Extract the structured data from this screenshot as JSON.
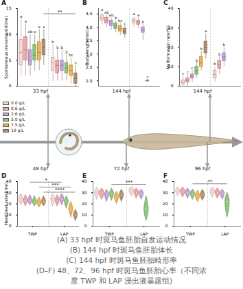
{
  "chart_data": [
    {
      "type": "box",
      "title": "A",
      "subtitle": "33 hpf",
      "y_label": "Spontaneous movement(time)",
      "categories": [
        null,
        null
      ],
      "tick_labels": "y",
      "legend": "left",
      "ylim": [
        0,
        15
      ],
      "yticks": [
        0,
        5,
        10,
        15
      ],
      "series": [
        {
          "name": "0.0 g/L",
          "color": "#f7d7d7",
          "values": [
            {
              "min": 2,
              "q1": 4,
              "median": 6.5,
              "q3": 9,
              "max": 13
            },
            {
              "min": 1,
              "q1": 3,
              "median": 4.5,
              "q3": 5.5,
              "max": 8
            }
          ],
          "letters": [
            "a",
            "b"
          ]
        },
        {
          "name": "0.6 g/L",
          "color": "#f2a7a0",
          "values": [
            {
              "min": 2,
              "q1": 5,
              "median": 7,
              "q3": 9.5,
              "max": 12
            },
            {
              "min": 1,
              "q1": 2.5,
              "median": 4,
              "q3": 5,
              "max": 7
            }
          ],
          "letters": [
            "a",
            "b"
          ]
        },
        {
          "name": "2.6 g/L",
          "color": "#c6a5dc",
          "values": [
            {
              "min": 2,
              "q1": 4,
              "median": 5,
              "q3": 7,
              "max": 10
            },
            {
              "min": 1,
              "q1": 3,
              "median": 4,
              "q3": 5,
              "max": 7
            }
          ],
          "letters": [
            "ab",
            "b"
          ]
        },
        {
          "name": "5.0 g/L",
          "color": "#8fc67e",
          "values": [
            {
              "min": 3,
              "q1": 5,
              "median": 6,
              "q3": 8,
              "max": 10
            },
            {
              "min": 1,
              "q1": 2.5,
              "median": 3.5,
              "q3": 4.5,
              "max": 6
            }
          ],
          "letters": [
            "a",
            "b"
          ]
        },
        {
          "name": "7.5 g/L",
          "color": "#f3b44e",
          "values": [
            {
              "min": 3,
              "q1": 5,
              "median": 6.5,
              "q3": 8.5,
              "max": 11
            },
            {
              "min": 0.5,
              "q1": 2,
              "median": 3,
              "q3": 4,
              "max": 5.5
            }
          ],
          "letters": [
            "a",
            "bc"
          ]
        },
        {
          "name": "10 g/L",
          "color": "#b49170",
          "values": [
            {
              "min": 4,
              "q1": 6,
              "median": 7.5,
              "q3": 9,
              "max": 11
            },
            {
              "min": 0,
              "q1": 0.5,
              "median": 1.5,
              "q3": 2.5,
              "max": 4
            }
          ],
          "letters": [
            "a",
            "c"
          ]
        }
      ],
      "brackets": [
        {
          "from": [
            0,
            5
          ],
          "to": [
            1,
            5
          ],
          "y": 14,
          "label": "**"
        }
      ]
    },
    {
      "type": "box",
      "title": "B",
      "subtitle": "144 hpf",
      "y_label": "Body length(mm)",
      "categories": [
        null,
        null
      ],
      "tick_labels": "y",
      "ylim": [
        1.8,
        4.7
      ],
      "yticks": [
        {
          "value": 2,
          "label": "2.0"
        },
        {
          "value": 2.5,
          "label": "2.5"
        },
        {
          "value": 3,
          "label": "3.0"
        },
        {
          "value": 3.5,
          "label": "3.5"
        },
        {
          "value": 4,
          "label": "4.0"
        },
        {
          "value": 4.5,
          "label": "4.5"
        }
      ],
      "series": [
        {
          "name": "0.0 g/L",
          "color": "#f7d7d7",
          "values": [
            {
              "min": 4.1,
              "q1": 4.25,
              "median": 4.35,
              "q3": 4.45,
              "max": 4.55
            },
            {
              "min": 4.0,
              "q1": 4.15,
              "median": 4.25,
              "q3": 4.3,
              "max": 4.4
            }
          ],
          "letters": [
            "a",
            "a"
          ]
        },
        {
          "name": "0.6 g/L",
          "color": "#f2a7a0",
          "values": [
            {
              "min": 4.0,
              "q1": 4.15,
              "median": 4.25,
              "q3": 4.35,
              "max": 4.45
            },
            {
              "min": 3.95,
              "q1": 4.1,
              "median": 4.2,
              "q3": 4.25,
              "max": 4.35
            }
          ],
          "letters": [
            "ab",
            "a"
          ]
        },
        {
          "name": "2.6 g/L",
          "color": "#c6a5dc",
          "values": [
            {
              "min": 3.9,
              "q1": 4.05,
              "median": 4.15,
              "q3": 4.25,
              "max": 4.35
            },
            {
              "min": 3.5,
              "q1": 3.8,
              "median": 3.9,
              "q3": 4.0,
              "max": 4.1
            }
          ],
          "letters": [
            "ab",
            "b"
          ]
        },
        {
          "name": "5.0 g/L",
          "color": "#8fc67e",
          "values": [
            {
              "min": 3.8,
              "q1": 3.95,
              "median": 4.05,
              "q3": 4.15,
              "max": 4.25
            },
            {
              "min": 1.95,
              "q1": 1.98,
              "median": 2.0,
              "q3": 2.02,
              "max": 2.05
            }
          ],
          "letters": [
            "b",
            "c"
          ]
        },
        {
          "name": "7.5 g/L",
          "color": "#f3b44e",
          "values": [
            {
              "min": 3.7,
              "q1": 3.85,
              "median": 3.95,
              "q3": 4.05,
              "max": 4.15
            },
            null
          ],
          "letters": [
            "bc",
            null
          ]
        },
        {
          "name": "10 g/L",
          "color": "#b49170",
          "values": [
            {
              "min": 3.6,
              "q1": 3.75,
              "median": 3.85,
              "q3": 3.95,
              "max": 4.05
            },
            null
          ],
          "letters": [
            "c",
            null
          ]
        }
      ]
    },
    {
      "type": "box",
      "title": "C",
      "subtitle": "144 hpf",
      "y_label": "Malformation rate(%)",
      "categories": [
        null,
        null
      ],
      "tick_labels": "y",
      "ylim": [
        0,
        40
      ],
      "yticks": [
        0,
        10,
        20,
        30,
        40
      ],
      "series": [
        {
          "name": "0.0 g/L",
          "color": "#f7d7d7",
          "values": [
            {
              "min": 0,
              "q1": 1,
              "median": 2,
              "q3": 3,
              "max": 5
            },
            {
              "min": 2,
              "q1": 4,
              "median": 6,
              "q3": 8,
              "max": 10
            }
          ],
          "letters": [
            "c",
            "b"
          ]
        },
        {
          "name": "0.6 g/L",
          "color": "#f2a7a0",
          "values": [
            {
              "min": 0,
              "q1": 2,
              "median": 3,
              "q3": 4,
              "max": 6
            },
            {
              "min": 6,
              "q1": 9,
              "median": 11,
              "q3": 13,
              "max": 15
            }
          ],
          "letters": [
            "c",
            "b"
          ]
        },
        {
          "name": "2.6 g/L",
          "color": "#c6a5dc",
          "values": [
            {
              "min": 2,
              "q1": 4,
              "median": 5,
              "q3": 6,
              "max": 8
            },
            {
              "min": 10,
              "q1": 13,
              "median": 15,
              "q3": 17,
              "max": 20
            }
          ],
          "letters": [
            "c",
            "b"
          ]
        },
        {
          "name": "5.0 g/L",
          "color": "#8fc67e",
          "values": [
            {
              "min": 4,
              "q1": 6,
              "median": 8,
              "q3": 10,
              "max": 12
            },
            null
          ],
          "letters": [
            "b",
            null
          ]
        },
        {
          "name": "7.5 g/L",
          "color": "#f3b44e",
          "values": [
            {
              "min": 8,
              "q1": 10,
              "median": 12,
              "q3": 15,
              "max": 18
            },
            null
          ],
          "letters": [
            "b",
            null
          ]
        },
        {
          "name": "10 g/L",
          "color": "#b49170",
          "values": [
            {
              "min": 14,
              "q1": 17,
              "median": 20,
              "q3": 23,
              "max": 27
            },
            null
          ],
          "letters": [
            "a",
            null
          ]
        }
      ]
    },
    {
      "type": "violin",
      "title": "D",
      "subtitle": "48 hpf",
      "y_label": "Heartbeat rate(time)",
      "categories": [
        "TWP",
        "LAP"
      ],
      "ylim": [
        0,
        40
      ],
      "yticks": [
        0,
        10,
        20,
        30,
        40
      ],
      "series": [
        {
          "name": "0.0 g/L",
          "color": "#f7d7d7",
          "values": [
            {
              "min": 19,
              "q1": 22,
              "median": 24,
              "q3": 26,
              "max": 29
            },
            {
              "min": 18,
              "q1": 22,
              "median": 24,
              "q3": 26,
              "max": 29
            }
          ]
        },
        {
          "name": "0.6 g/L",
          "color": "#f2a7a0",
          "values": [
            {
              "min": 18,
              "q1": 21,
              "median": 23,
              "q3": 25,
              "max": 28
            },
            {
              "min": 18,
              "q1": 21,
              "median": 23,
              "q3": 25,
              "max": 28
            }
          ]
        },
        {
          "name": "2.6 g/L",
          "color": "#c6a5dc",
          "values": [
            {
              "min": 19,
              "q1": 21,
              "median": 23,
              "q3": 25,
              "max": 28
            },
            {
              "min": 19,
              "q1": 22,
              "median": 24,
              "q3": 27,
              "max": 29
            }
          ]
        },
        {
          "name": "5.0 g/L",
          "color": "#8fc67e",
          "values": [
            {
              "min": 18,
              "q1": 20,
              "median": 22,
              "q3": 24,
              "max": 27
            },
            {
              "min": 16,
              "q1": 20,
              "median": 22,
              "q3": 24,
              "max": 27
            }
          ]
        },
        {
          "name": "7.5 g/L",
          "color": "#f3b44e",
          "values": [
            {
              "min": 17,
              "q1": 19,
              "median": 21,
              "q3": 23,
              "max": 26
            },
            {
              "min": 8,
              "q1": 13,
              "median": 15,
              "q3": 18,
              "max": 22
            }
          ]
        },
        {
          "name": "10 g/L",
          "color": "#b49170",
          "values": [
            {
              "min": 18,
              "q1": 20,
              "median": 22,
              "q3": 24,
              "max": 27
            },
            {
              "min": 5,
              "q1": 8,
              "median": 10,
              "q3": 12,
              "max": 15
            }
          ]
        }
      ],
      "brackets": [
        {
          "from": [
            0,
            2
          ],
          "to": [
            1,
            2
          ],
          "y": 39.5,
          "label": "*"
        },
        {
          "from": [
            0,
            4
          ],
          "to": [
            1,
            4
          ],
          "y": 35,
          "label": "***"
        },
        {
          "from": [
            0,
            5
          ],
          "to": [
            1,
            5
          ],
          "y": 30.5,
          "label": "****"
        }
      ]
    },
    {
      "type": "violin",
      "title": "E",
      "subtitle": "72 hpf",
      "categories": [
        "TWP",
        "LAP"
      ],
      "ylim": [
        0,
        40
      ],
      "yticks": [
        0,
        10,
        20,
        30,
        40
      ],
      "series": [
        {
          "name": "0.0 g/L",
          "color": "#f7d7d7",
          "values": [
            {
              "min": 24,
              "q1": 28,
              "median": 30,
              "q3": 32,
              "max": 35
            },
            {
              "min": 27,
              "q1": 30,
              "median": 32,
              "q3": 34,
              "max": 35
            }
          ]
        },
        {
          "name": "0.6 g/L",
          "color": "#f2a7a0",
          "values": [
            {
              "min": 24,
              "q1": 27,
              "median": 30,
              "q3": 32,
              "max": 34
            },
            {
              "min": 25,
              "q1": 28,
              "median": 30,
              "q3": 32,
              "max": 34
            }
          ]
        },
        {
          "name": "2.6 g/L",
          "color": "#c6a5dc",
          "values": [
            {
              "min": 22,
              "q1": 26,
              "median": 28,
              "q3": 30,
              "max": 33
            },
            {
              "min": 24,
              "q1": 27,
              "median": 29,
              "q3": 31,
              "max": 33
            }
          ]
        },
        {
          "name": "5.0 g/L",
          "color": "#8fc67e",
          "values": [
            {
              "min": 23,
              "q1": 27,
              "median": 29,
              "q3": 31,
              "max": 34
            },
            {
              "min": 5,
              "q1": 10,
              "median": 15,
              "q3": 20,
              "max": 27
            }
          ]
        },
        {
          "name": "7.5 g/L",
          "color": "#f3b44e",
          "values": [
            {
              "min": 20,
              "q1": 24,
              "median": 26,
              "q3": 28,
              "max": 31
            },
            null
          ]
        },
        {
          "name": "10 g/L",
          "color": "#b49170",
          "values": [
            {
              "min": 22,
              "q1": 26,
              "median": 28,
              "q3": 30,
              "max": 33
            },
            null
          ]
        }
      ],
      "brackets": [
        {
          "from": [
            0,
            3
          ],
          "to": [
            1,
            3
          ],
          "y": 37.5,
          "label": "***"
        }
      ]
    },
    {
      "type": "violin",
      "title": "F",
      "subtitle": "96 hpf",
      "categories": [
        "TWP",
        "LAP"
      ],
      "ylim": [
        0,
        40
      ],
      "yticks": [
        0,
        10,
        20,
        30,
        40
      ],
      "series": [
        {
          "name": "0.0 g/L",
          "color": "#f7d7d7",
          "values": [
            {
              "min": 27,
              "q1": 30,
              "median": 32,
              "q3": 33,
              "max": 35
            },
            {
              "min": 26,
              "q1": 29,
              "median": 31,
              "q3": 33,
              "max": 35
            }
          ]
        },
        {
          "name": "0.6 g/L",
          "color": "#f2a7a0",
          "values": [
            {
              "min": 26,
              "q1": 29,
              "median": 31,
              "q3": 33,
              "max": 35
            },
            {
              "min": 25,
              "q1": 28,
              "median": 30,
              "q3": 32,
              "max": 34
            }
          ]
        },
        {
          "name": "2.6 g/L",
          "color": "#c6a5dc",
          "values": [
            {
              "min": 25,
              "q1": 28,
              "median": 30,
              "q3": 32,
              "max": 34
            },
            {
              "min": 24,
              "q1": 27,
              "median": 29,
              "q3": 31,
              "max": 33
            }
          ]
        },
        {
          "name": "5.0 g/L",
          "color": "#8fc67e",
          "values": [
            {
              "min": 24,
              "q1": 27,
              "median": 29,
              "q3": 31,
              "max": 33
            },
            {
              "min": 8,
              "q1": 15,
              "median": 22,
              "q3": 26,
              "max": 30
            }
          ]
        },
        {
          "name": "7.5 g/L",
          "color": "#f3b44e",
          "values": [
            {
              "min": 22,
              "q1": 25,
              "median": 27,
              "q3": 29,
              "max": 32
            },
            null
          ]
        },
        {
          "name": "10 g/L",
          "color": "#b49170",
          "values": [
            {
              "min": 23,
              "q1": 26,
              "median": 28,
              "q3": 30,
              "max": 33
            },
            null
          ]
        }
      ],
      "brackets": [
        {
          "from": [
            0,
            3
          ],
          "to": [
            1,
            3
          ],
          "y": 38,
          "label": "**"
        }
      ]
    }
  ],
  "caption": [
    "(A) 33 hpf 时斑马鱼胚胎自发运动情况",
    "(B) 144 hpf 时斑马鱼胚胎体长",
    "(C) 144 hpf 时斑马鱼胚胎畸形率",
    "(D–F) 48、72、96 hpf 时斑马鱼胚胎心率（不同浓",
    "度 TWP 和 LAP 浸出液暴露组)"
  ]
}
